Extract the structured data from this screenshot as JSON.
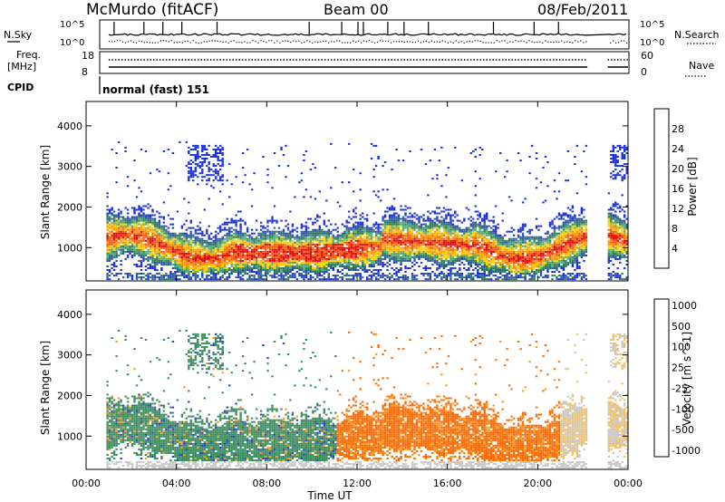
{
  "header": {
    "station": "McMurdo (fitACF)",
    "beam": "Beam 00",
    "date": "08/Feb/2011"
  },
  "status_panels": {
    "nsky_label": "N.Sky",
    "nsky_ticks": [
      "10^5",
      "10^0"
    ],
    "nsearch_label": "N.Search",
    "nsearch_ticks": [
      "10^5",
      "10^0"
    ],
    "freq_label_line1": "Freq.",
    "freq_label_line2": "[MHz]",
    "freq_ticks": [
      "18",
      "8"
    ],
    "nave_label": "Nave",
    "nave_ticks": [
      "60",
      "0"
    ],
    "cpid_label": "CPID",
    "cpid_value": "normal (fast) 151"
  },
  "colors": {
    "power_scale": [
      "#1a2fe0",
      "#2f4fb8",
      "#2e7d5a",
      "#4caf78",
      "#ffd000",
      "#ff9a00",
      "#ff5a00",
      "#e8000b"
    ],
    "velocity_scale": [
      "#ee1111",
      "#ff6a00",
      "#ff9a20",
      "#f5c060",
      "#c8c8c8",
      "#8ee05a",
      "#3a8f5f",
      "#2a3fcf"
    ]
  },
  "chart_data": [
    {
      "type": "heatmap",
      "title": "Power",
      "ylabel": "Slant Range [km]",
      "xlabel": "Time UT",
      "x_ticks": [
        "00:00",
        "04:00",
        "08:00",
        "12:00",
        "16:00",
        "20:00",
        "00:00"
      ],
      "y_ticks": [
        "1000",
        "2000",
        "3000",
        "4000"
      ],
      "x_range_hours": [
        0,
        24
      ],
      "y_range_km": [
        180,
        4600
      ],
      "colorbar_label": "Power [dB]",
      "colorbar_ticks": [
        "4",
        "8",
        "12",
        "16",
        "20",
        "24",
        "28"
      ],
      "colorbar_range": [
        0,
        32
      ]
    },
    {
      "type": "heatmap",
      "title": "Velocity",
      "ylabel": "Slant Range [km]",
      "xlabel": "Time UT",
      "x_ticks": [
        "00:00",
        "04:00",
        "08:00",
        "12:00",
        "16:00",
        "20:00",
        "00:00"
      ],
      "y_ticks": [
        "1000",
        "2000",
        "3000",
        "4000"
      ],
      "x_range_hours": [
        0,
        24
      ],
      "y_range_km": [
        180,
        4600
      ],
      "colorbar_label": "Velocity [m s^-1]",
      "colorbar_ticks": [
        "1000",
        "500",
        "100",
        "25",
        "-25",
        "-100",
        "-500",
        "-1000"
      ]
    }
  ],
  "xaxis_title": "Time UT"
}
